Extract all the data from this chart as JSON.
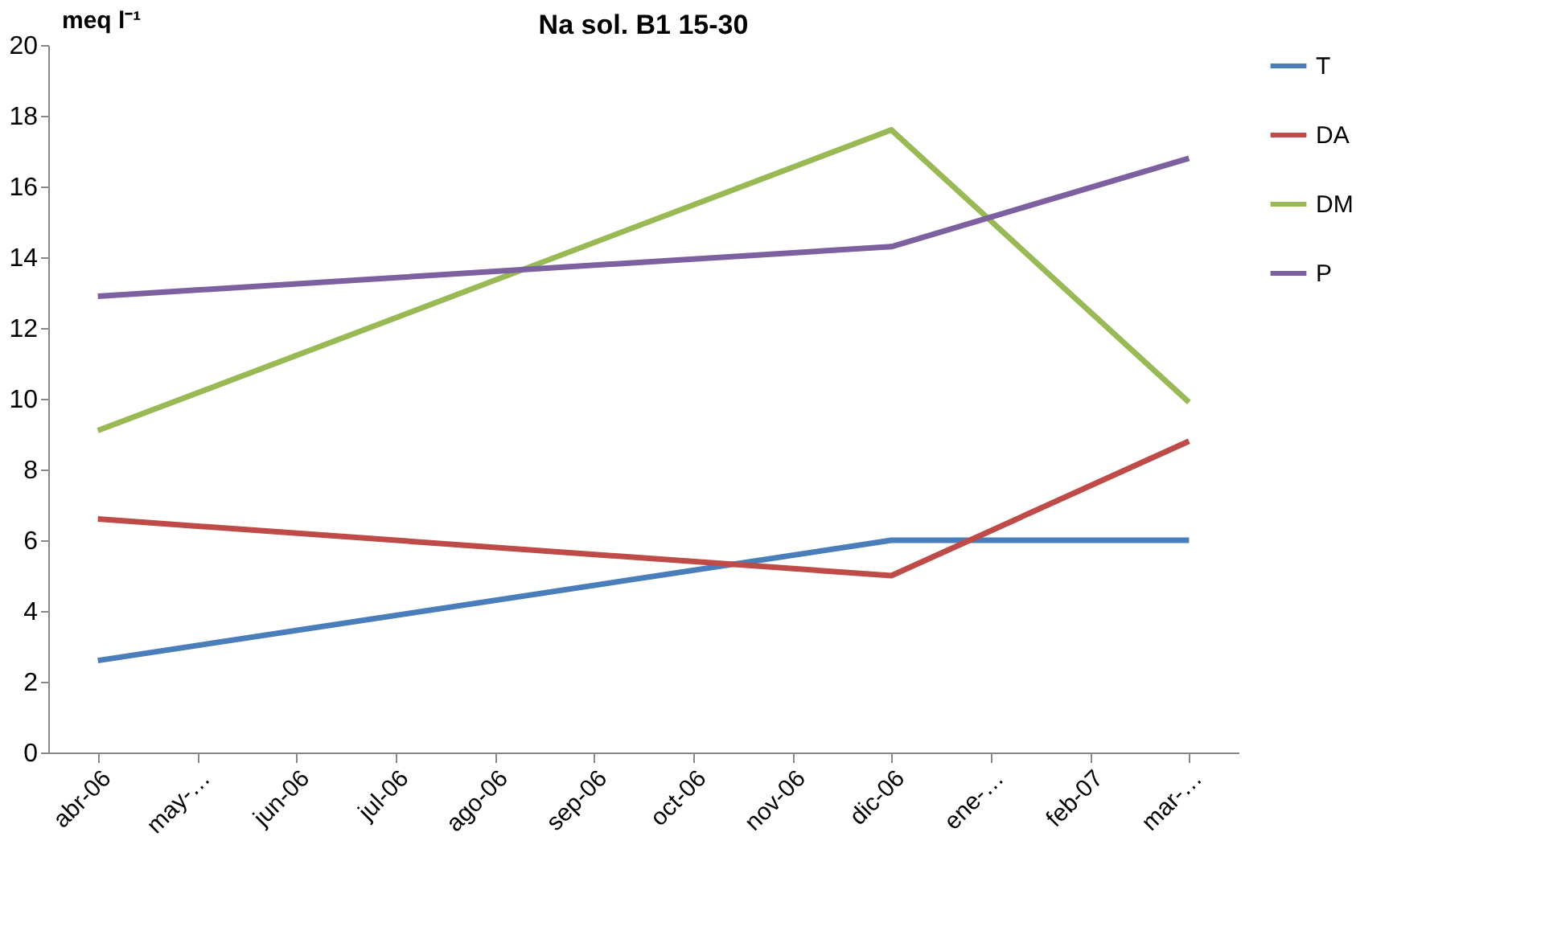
{
  "chart_data": {
    "type": "line",
    "title": "Na sol. B1 15-30",
    "ylabel": "meq l⁻¹",
    "categories": [
      "abr-06",
      "may-…",
      "jun-06",
      "jul-06",
      "ago-06",
      "sep-06",
      "oct-06",
      "nov-06",
      "dic-06",
      "ene-…",
      "feb-07",
      "mar-…"
    ],
    "series": [
      {
        "name": "T",
        "color": "#4a7ebb",
        "values": [
          2.6,
          null,
          null,
          null,
          null,
          null,
          null,
          null,
          6.0,
          null,
          null,
          6.0
        ]
      },
      {
        "name": "DA",
        "color": "#be4b48",
        "values": [
          6.6,
          null,
          null,
          null,
          null,
          null,
          null,
          null,
          5.0,
          null,
          null,
          8.8
        ]
      },
      {
        "name": "DM",
        "color": "#98b954",
        "values": [
          9.1,
          null,
          null,
          null,
          null,
          null,
          null,
          null,
          17.6,
          null,
          null,
          9.9
        ]
      },
      {
        "name": "P",
        "color": "#7d60a0",
        "values": [
          12.9,
          null,
          null,
          null,
          null,
          null,
          null,
          null,
          14.3,
          null,
          null,
          16.8
        ]
      }
    ],
    "ylim": [
      0,
      20
    ],
    "yticks": [
      0,
      2,
      4,
      6,
      8,
      10,
      12,
      14,
      16,
      18,
      20
    ],
    "grid": false,
    "legend": "right",
    "marker": "none",
    "line_style": "solid"
  }
}
